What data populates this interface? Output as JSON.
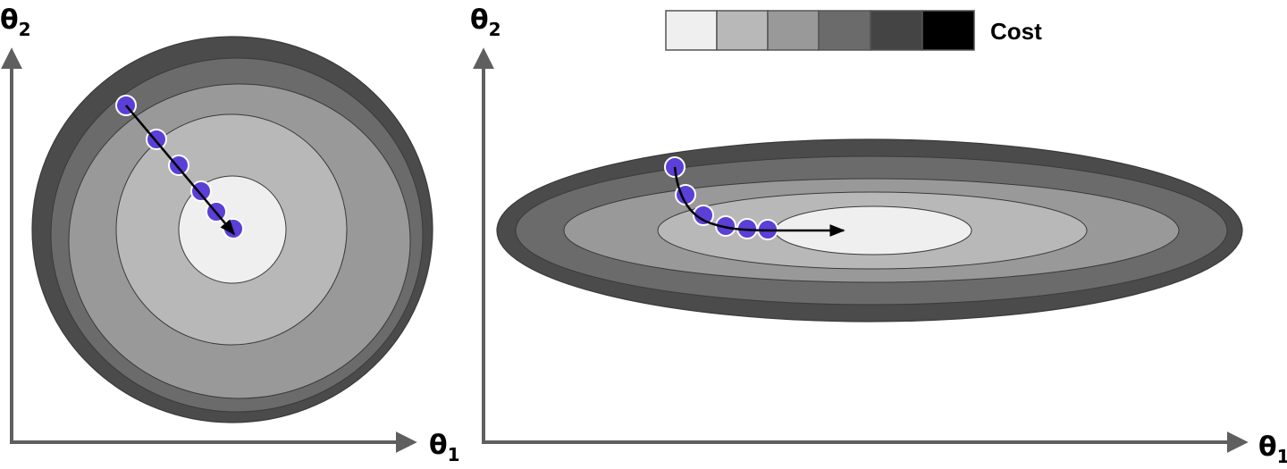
{
  "legend": {
    "label": "Cost",
    "levels": [
      "#efefef",
      "#b8b8b8",
      "#999999",
      "#6b6b6b",
      "#444444",
      "#000000"
    ]
  },
  "panels": [
    {
      "id": "left",
      "y_axis_label": {
        "symbol": "θ",
        "subscript": "2"
      },
      "x_axis_label": {
        "symbol": "θ",
        "subscript": "1"
      },
      "contour_colors": [
        "#4b4b4b",
        "#6b6b6b",
        "#999999",
        "#b8b8b8",
        "#efefef"
      ],
      "path_color": "#5b3fd6",
      "steps": 6
    },
    {
      "id": "right",
      "y_axis_label": {
        "symbol": "θ",
        "subscript": "2"
      },
      "x_axis_label": {
        "symbol": "θ",
        "subscript": "1"
      },
      "contour_colors": [
        "#4b4b4b",
        "#6b6b6b",
        "#999999",
        "#b8b8b8",
        "#efefef"
      ],
      "path_color": "#5b3fd6",
      "steps": 6
    }
  ],
  "colors": {
    "axis": "#5f5f5f",
    "arrow": "#000000",
    "contour_stroke": "#3a3a3a",
    "point_stroke": "#ffffff"
  }
}
